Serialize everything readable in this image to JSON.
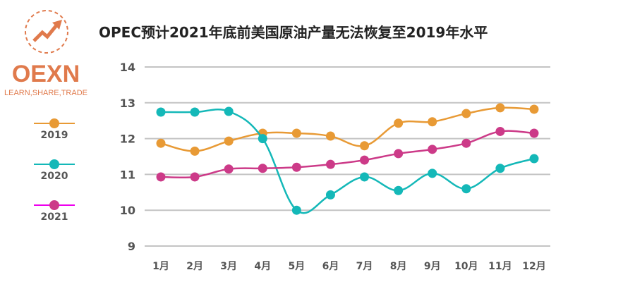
{
  "title": "OPEC预计2021年底前美国原油产量无法恢复至2019年水平",
  "logo": {
    "name": "OEXN",
    "tagline": "LEARN,SHARE,TRADE",
    "color": "#e07a4c"
  },
  "chart_data": {
    "type": "line",
    "title": "OPEC预计2021年底前美国原油产量无法恢复至2019年水平",
    "xlabel": "",
    "ylabel": "",
    "categories": [
      "1月",
      "2月",
      "3月",
      "4月",
      "5月",
      "6月",
      "7月",
      "8月",
      "9月",
      "10月",
      "11月",
      "12月"
    ],
    "ylim": [
      9,
      14
    ],
    "yticks": [
      9,
      10,
      11,
      12,
      13,
      14
    ],
    "grid": true,
    "legend_position": "left",
    "series": [
      {
        "name": "2019",
        "color": "#e89a35",
        "values": [
          11.87,
          11.65,
          11.93,
          12.15,
          12.15,
          12.07,
          11.8,
          12.43,
          12.47,
          12.7,
          12.86,
          12.82
        ]
      },
      {
        "name": "2020",
        "color": "#14b8b8",
        "values": [
          12.74,
          12.74,
          12.76,
          12.0,
          10.0,
          10.43,
          10.93,
          10.55,
          11.03,
          10.6,
          11.17,
          11.44
        ]
      },
      {
        "name": "2021",
        "color": "#cc3a88",
        "line_color": "#ee00ee",
        "values": [
          10.93,
          10.93,
          11.15,
          11.17,
          11.2,
          11.28,
          11.4,
          11.58,
          11.7,
          11.87,
          12.2,
          12.15
        ]
      }
    ]
  }
}
